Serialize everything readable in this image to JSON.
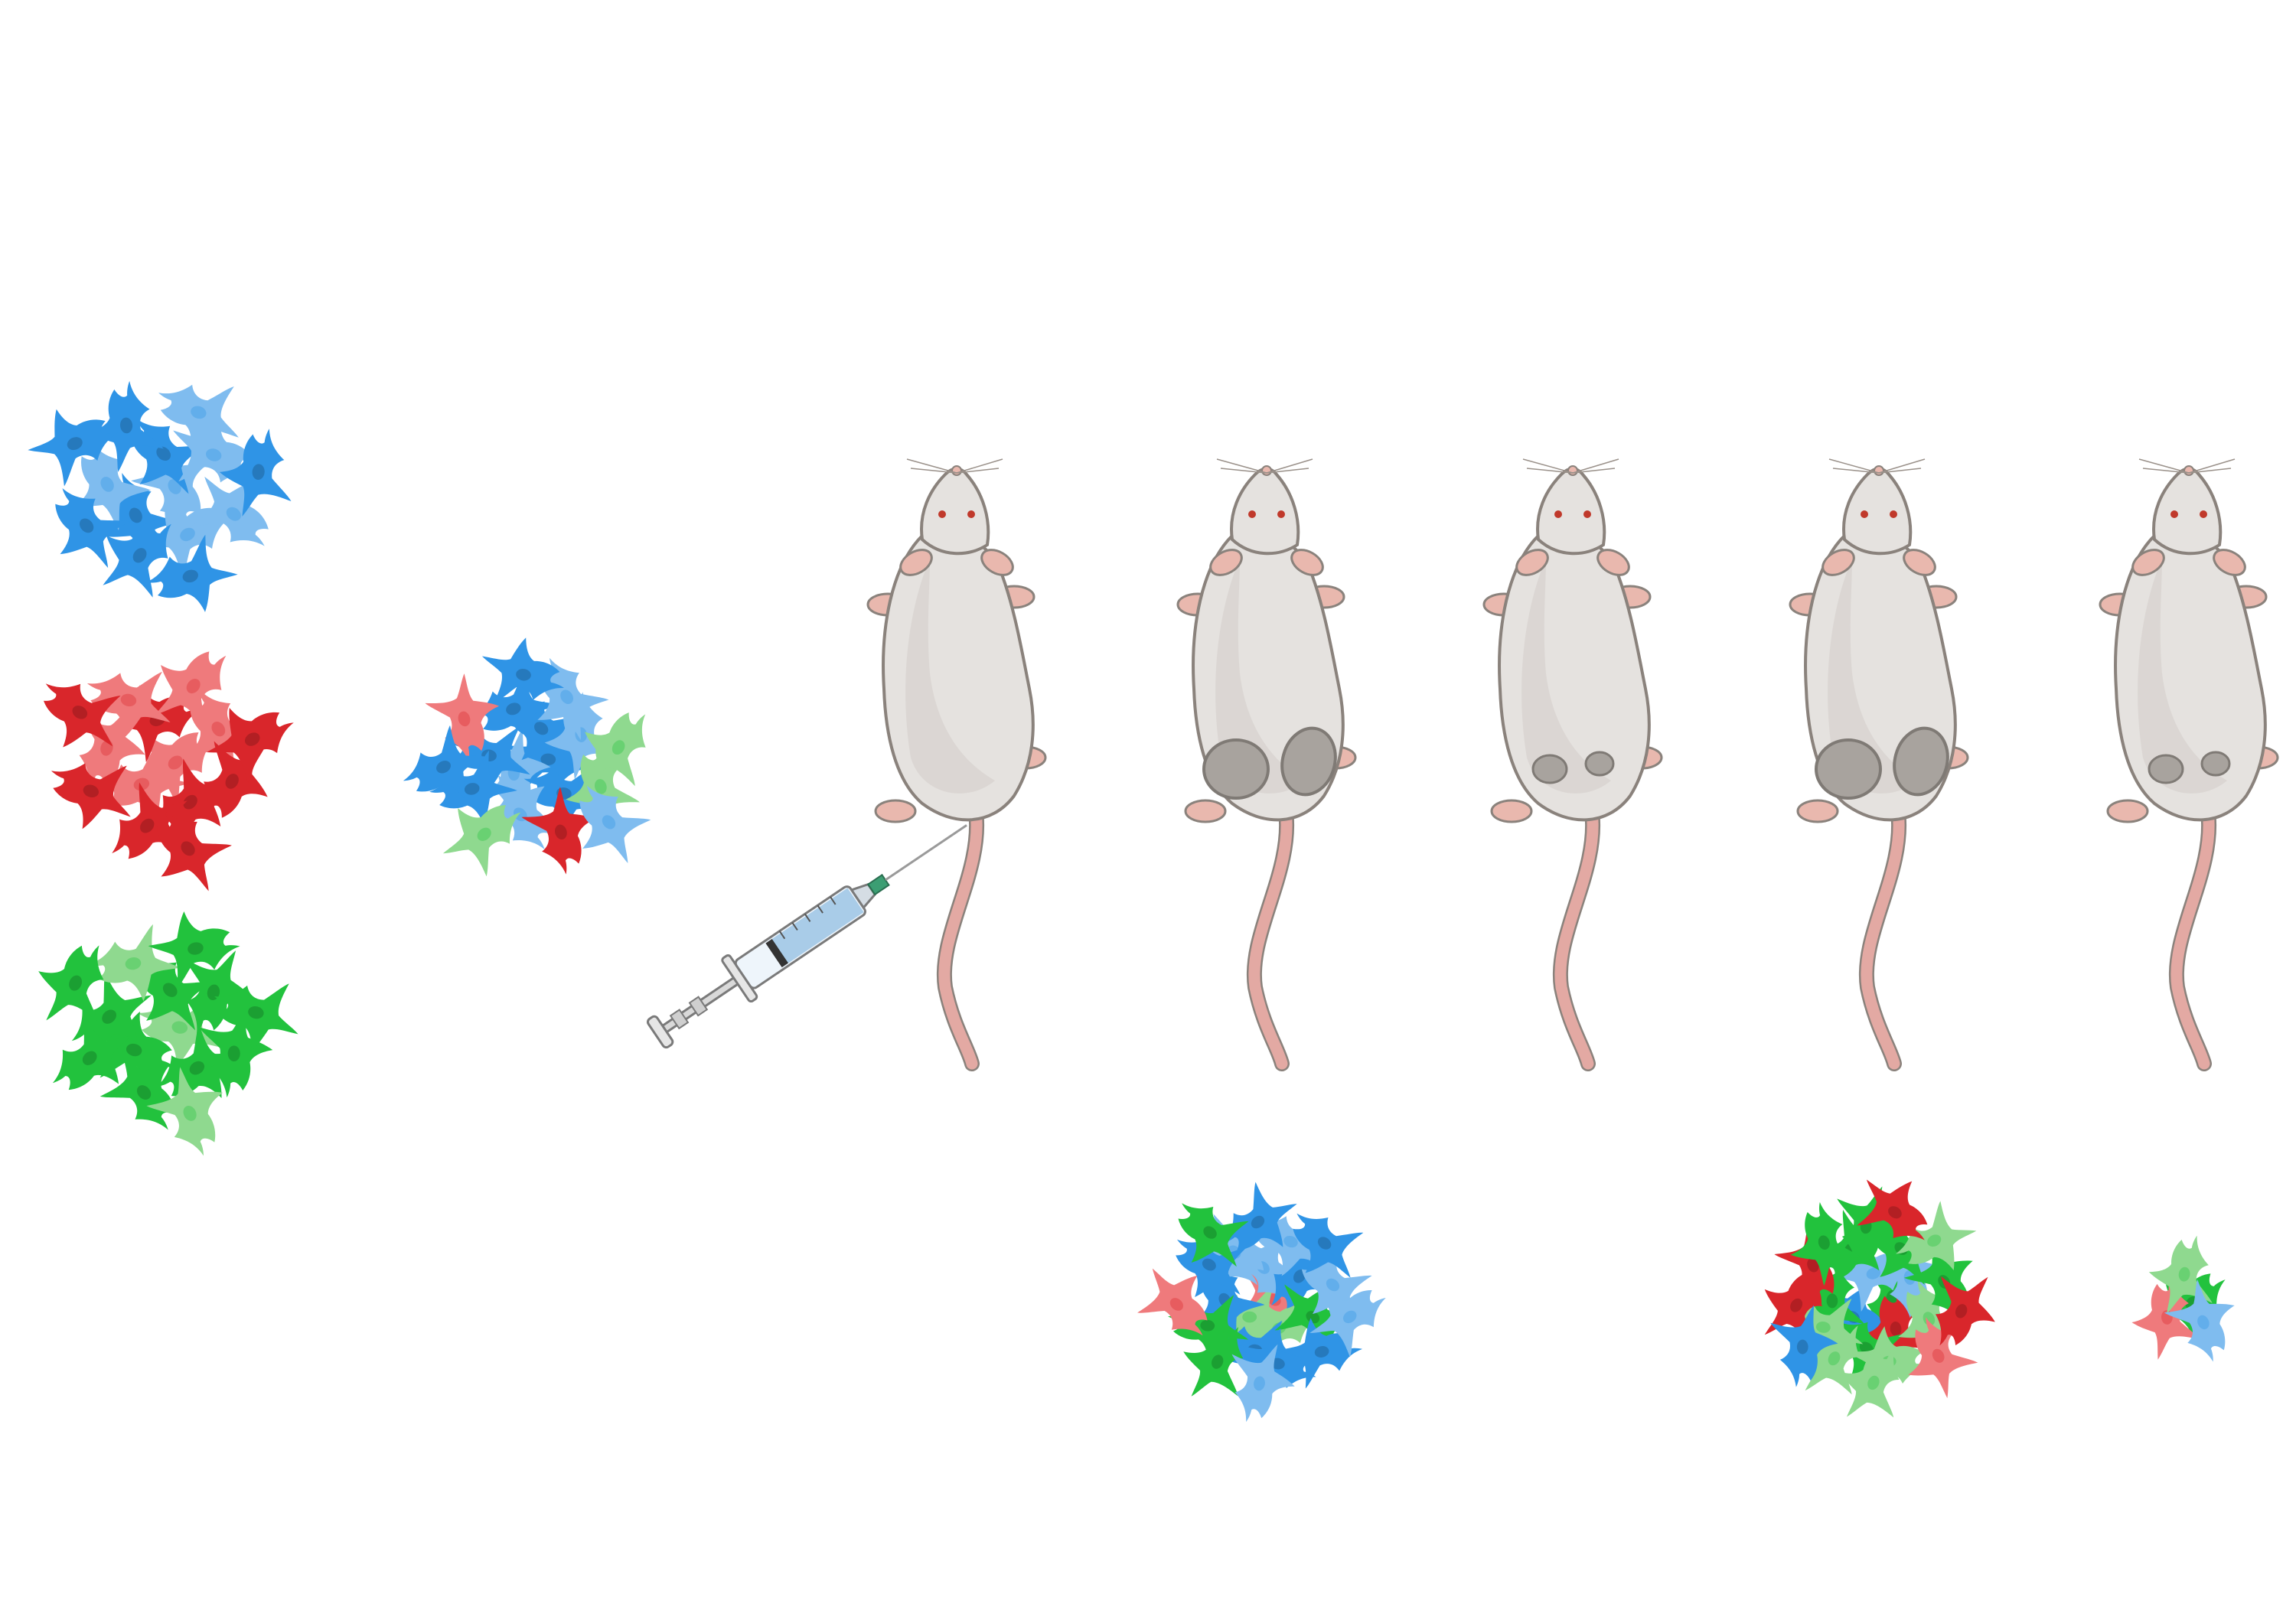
{
  "colors": {
    "blue": "#2f94e6",
    "blue_light": "#7fbcef",
    "red": "#d9262b",
    "red_light": "#ef7a7c",
    "green": "#22c23d",
    "green_light": "#8fd98f",
    "mouse_body": "#e5e2df",
    "mouse_shade": "#d3cfcb",
    "mouse_outline": "#8a827c",
    "mouse_pink": "#e9b8ae",
    "tail": "#e3a9a3",
    "tumor": "#a8a39e",
    "tumor_dark": "#7f7a75"
  },
  "icons": {
    "cell": "mesenchymal-cell-icon",
    "mouse": "mouse-icon",
    "syringe": "syringe-icon",
    "tumor": "tumor-icon"
  },
  "source_clusters": [
    {
      "name": "blue",
      "cells": 14
    },
    {
      "name": "red",
      "cells": 14
    },
    {
      "name": "green",
      "cells": 14
    }
  ],
  "mixed_cluster": {
    "blue": 13,
    "red": 2,
    "green": 3
  },
  "mice": [
    {
      "name": "injected",
      "tumor": "none"
    },
    {
      "name": "large-tumors-1",
      "tumor": "large"
    },
    {
      "name": "small-tumors-1",
      "tumor": "small"
    },
    {
      "name": "large-tumors-2",
      "tumor": "large"
    },
    {
      "name": "small-tumors-2",
      "tumor": "small"
    }
  ],
  "harvested_clusters": [
    {
      "mouse": 2,
      "blue": 14,
      "red": 2,
      "green": 6
    },
    {
      "mouse": 4,
      "blue": 4,
      "red": 6,
      "green": 14
    },
    {
      "mouse": 5,
      "blue": 1,
      "red": 1,
      "green": 2
    }
  ]
}
